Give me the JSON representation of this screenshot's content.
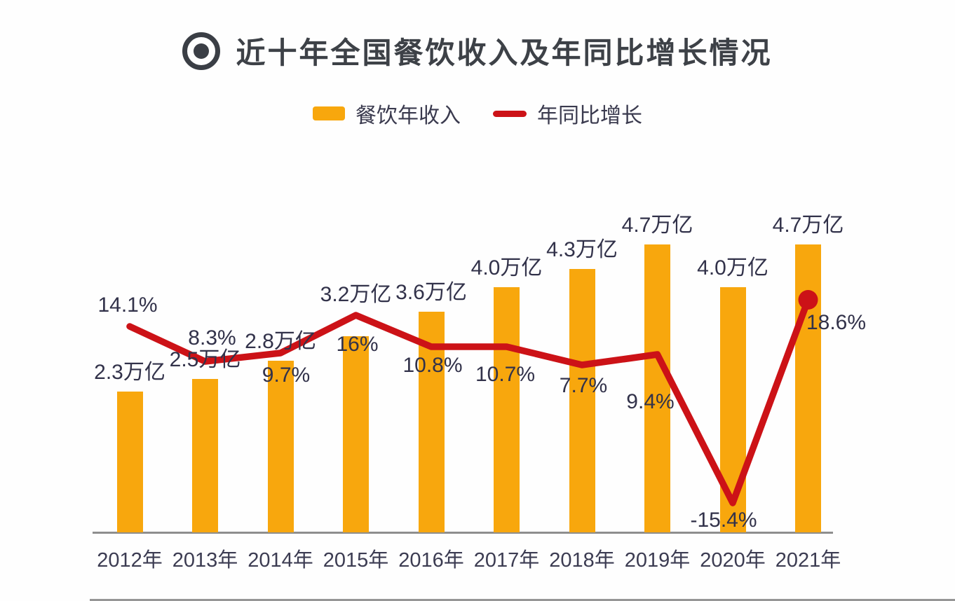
{
  "chart_data": {
    "type": "bar+line combo",
    "title": "近十年全国餐饮收入及年同比增长情况",
    "title_icon": "bullseye-icon",
    "categories": [
      "2012年",
      "2013年",
      "2014年",
      "2015年",
      "2016年",
      "2017年",
      "2018年",
      "2019年",
      "2020年",
      "2021年"
    ],
    "series": [
      {
        "name": "餐饮年收入",
        "type": "bar",
        "unit": "万亿",
        "values": [
          2.3,
          2.5,
          2.8,
          3.2,
          3.6,
          4.0,
          4.3,
          4.7,
          4.0,
          4.7
        ],
        "labels": [
          "2.3万亿",
          "2.5万亿",
          "2.8万亿",
          "3.2万亿",
          "3.6万亿",
          "4.0万亿",
          "4.3万亿",
          "4.7万亿",
          "4.0万亿",
          "4.7万亿"
        ]
      },
      {
        "name": "年同比增长",
        "type": "line",
        "unit": "%",
        "values": [
          14.1,
          8.3,
          9.7,
          16,
          10.8,
          10.7,
          7.7,
          9.4,
          -15.4,
          18.6
        ],
        "labels": [
          "14.1%",
          "8.3%",
          "9.7%",
          "16%",
          "10.8%",
          "10.7%",
          "7.7%",
          "9.4%",
          "-15.4%",
          "18.6%"
        ]
      }
    ],
    "colors": {
      "bar": "#F8A70D",
      "line": "#CC1217",
      "label_text": "#32324A",
      "title_text": "#3D4147",
      "axis_line": "#8E8E8E"
    },
    "legend_position": "top",
    "y_axis": "none",
    "grid": "off",
    "ylim_bar": [
      0,
      5
    ],
    "ylim_line": [
      -20,
      20
    ],
    "marker": "filled dot on last line point (2021)"
  }
}
